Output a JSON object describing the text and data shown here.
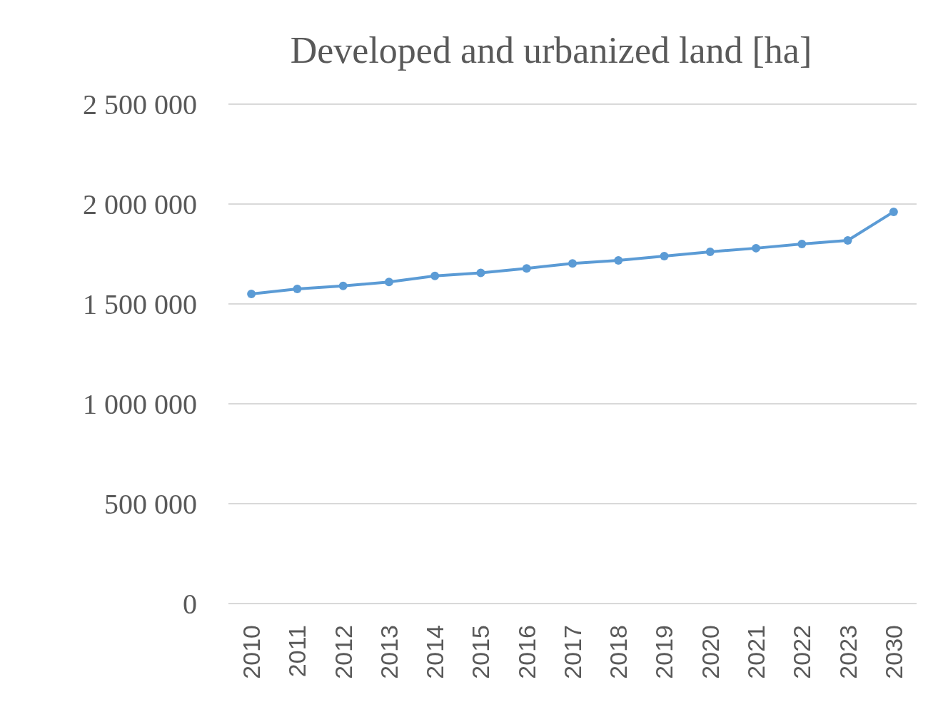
{
  "chart_data": {
    "type": "line",
    "title": "Developed and urbanized land [ha]",
    "categories": [
      "2010",
      "2011",
      "2012",
      "2013",
      "2014",
      "2015",
      "2016",
      "2017",
      "2018",
      "2019",
      "2020",
      "2021",
      "2022",
      "2023",
      "2030"
    ],
    "series": [
      {
        "color": "#5b9bd5",
        "values": [
          1550000,
          1575000,
          1590000,
          1610000,
          1640000,
          1655000,
          1678000,
          1703000,
          1718000,
          1739000,
          1761000,
          1779000,
          1800000,
          1818000,
          1961000
        ]
      }
    ],
    "ylim": [
      0,
      2500000
    ],
    "yticks": [
      0,
      {
        "value": 500000,
        "label": "500 000"
      },
      {
        "value": 1000000,
        "label": "1 000 000"
      },
      {
        "value": 1500000,
        "label": "1 500 000"
      },
      {
        "value": 2000000,
        "label": "2 000 000"
      },
      {
        "value": 2500000,
        "label": "2 500 000"
      }
    ],
    "grid": "y",
    "marker": "circle",
    "line_style": "solid"
  }
}
